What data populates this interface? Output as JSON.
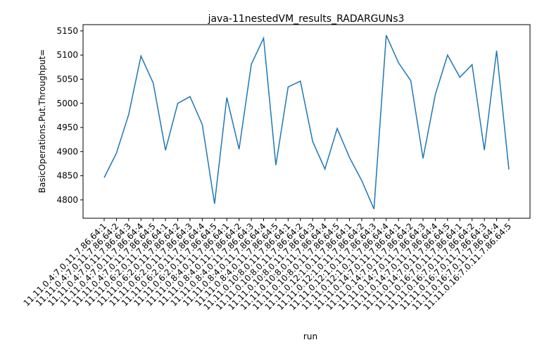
{
  "chart_data": {
    "type": "line",
    "title": "java-11nestedVM_results_RADARGUNs3",
    "x_label": "run",
    "y_label": "BasicOperations.Put.Throughput=",
    "categories": [
      "11.11.0.4:7.0.11.7.86.64:1",
      "11.11.0.4:7.0.11.7.86.64:2",
      "11.11.0.4:7.0.11.7.86.64:3",
      "11.11.0.4:7.0.11.7.86.64:4",
      "11.11.0.4:7.0.11.7.86.64:5",
      "11.11.0.6:2.0.11.7.86.64:1",
      "11.11.0.6:2.0.11.7.86.64:2",
      "11.11.0.6:2.0.11.7.86.64:3",
      "11.11.0.6:2.0.11.7.86.64:4",
      "11.11.0.6:2.0.11.7.86.64:5",
      "11.11.0.8:4.0.11.7.86.64:1",
      "11.11.0.8:4.0.11.7.86.64:2",
      "11.11.0.8:4.0.11.7.86.64:3",
      "11.11.0.8:4.0.11.7.86.64:4",
      "11.11.0.8:4.0.11.7.86.64:5",
      "11.11.0.10:8.0.11.7.86.64:1",
      "11.11.0.10:8.0.11.7.86.64:2",
      "11.11.0.10:8.0.11.7.86.64:3",
      "11.11.0.10:8.0.11.7.86.64:4",
      "11.11.0.10:8.0.11.7.86.64:5",
      "11.11.0.12:1.0.11.7.86.64:1",
      "11.11.0.12:1.0.11.7.86.64:2",
      "11.11.0.12:1.0.11.7.86.64:3",
      "11.11.0.12:1.0.11.7.86.64:4",
      "11.11.0.14:7.0.11.7.86.64:1",
      "11.11.0.14:7.0.11.7.86.64:2",
      "11.11.0.14:7.0.11.7.86.64:3",
      "11.11.0.14:7.0.11.7.86.64:4",
      "11.11.0.14:7.0.11.7.86.64:5",
      "11.11.0.16:7.0.11.7.86.64:1",
      "11.11.0.16:7.0.11.7.86.64:2",
      "11.11.0.16:7.0.11.7.86.64:3",
      "11.11.0.16:7.0.11.7.86.64:4",
      "11.11.0.16:7.0.11.7.86.64:5"
    ],
    "values": [
      4846,
      4897,
      4977,
      5098,
      5042,
      4903,
      5000,
      5014,
      4956,
      4792,
      5012,
      4905,
      5081,
      5135,
      4872,
      5034,
      5046,
      4921,
      4864,
      4948,
      4888,
      4840,
      4781,
      5141,
      5084,
      5047,
      4886,
      5018,
      5100,
      5054,
      5080,
      4903,
      5109,
      4863
    ],
    "color": "#1f77b4",
    "ylim": [
      4762,
      5163
    ],
    "yticks": [
      4800,
      4850,
      4900,
      4950,
      5000,
      5050,
      5100,
      5150
    ],
    "grid": false
  }
}
